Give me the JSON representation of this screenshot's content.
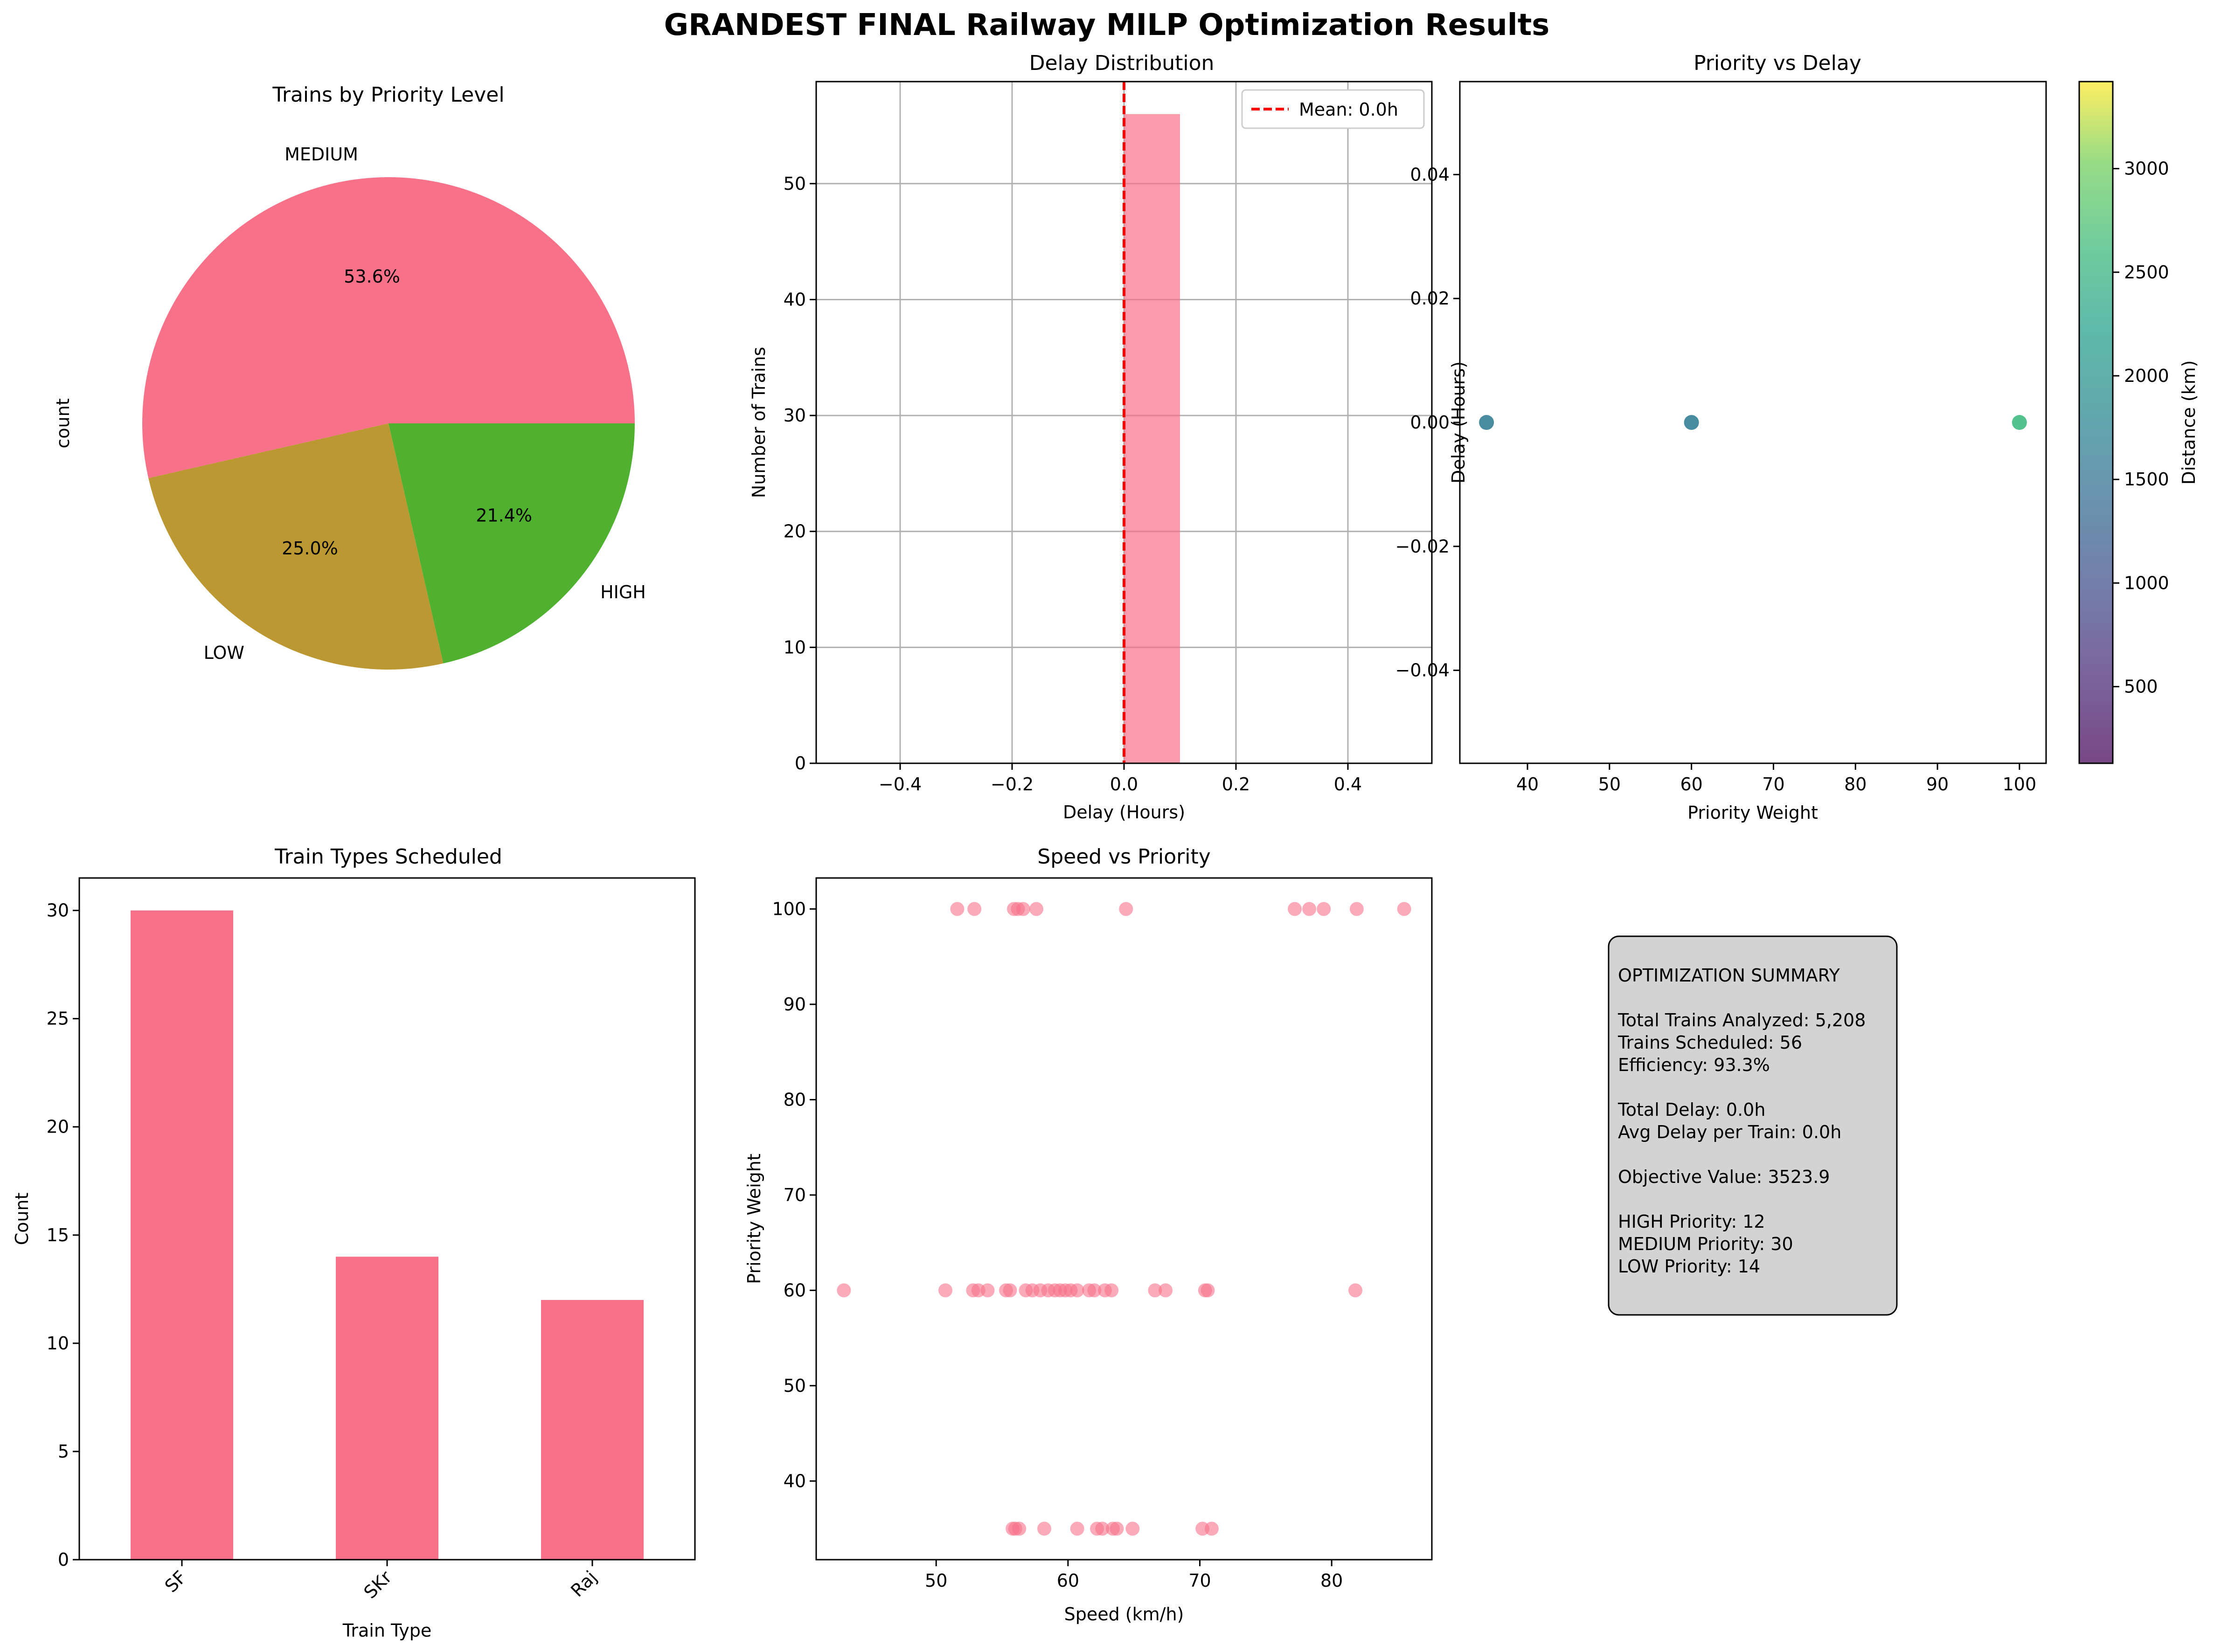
{
  "figure_title": "GRANDEST FINAL Railway MILP Optimization Results",
  "chart_data": [
    {
      "type": "pie",
      "title": "Trains by Priority Level",
      "ylabel": "count",
      "labels": [
        "MEDIUM",
        "LOW",
        "HIGH"
      ],
      "values": [
        30,
        14,
        12
      ],
      "pct_labels": [
        "53.6%",
        "25.0%",
        "21.4%"
      ],
      "colors": [
        "#f77189",
        "#bb9832",
        "#50b131"
      ]
    },
    {
      "type": "bar",
      "title": "Delay Distribution",
      "xlabel": "Delay (Hours)",
      "ylabel": "Number of Trains",
      "bins": [
        {
          "x0": 0.0,
          "x1": 0.1,
          "count": 56
        }
      ],
      "xlim": [
        -0.55,
        0.55
      ],
      "ylim": [
        0,
        58.8
      ],
      "xticks": [
        -0.4,
        -0.2,
        0.0,
        0.2,
        0.4
      ],
      "xtick_labels": [
        "−0.4",
        "−0.2",
        "0.0",
        "0.2",
        "0.4"
      ],
      "yticks": [
        0,
        10,
        20,
        30,
        40,
        50
      ],
      "yticks_labels": [
        "0",
        "10",
        "20",
        "30",
        "40",
        "50"
      ],
      "grid": true,
      "mean_line": 0.0,
      "legend": {
        "label": "Mean: 0.0h",
        "placement": "top-right"
      },
      "bar_color": "#f77189",
      "mean_color": "#ff0000"
    },
    {
      "type": "scatter",
      "title": "Priority vs Delay",
      "xlabel": "Priority Weight",
      "ylabel": "Delay (Hours)",
      "points": [
        {
          "x": 35,
          "y": 0.0,
          "color": "#2a788e"
        },
        {
          "x": 60,
          "y": 0.0,
          "color": "#2a788e"
        },
        {
          "x": 100,
          "y": 0.0,
          "color": "#35b779"
        }
      ],
      "xlim": [
        31.75,
        103.25
      ],
      "ylim": [
        -0.055,
        0.055
      ],
      "xticks": [
        40,
        50,
        60,
        70,
        80,
        90,
        100
      ],
      "xtick_labels": [
        "40",
        "50",
        "60",
        "70",
        "80",
        "90",
        "100"
      ],
      "yticks": [
        -0.04,
        -0.02,
        0.0,
        0.02,
        0.04
      ],
      "ytick_labels": [
        "−0.04",
        "−0.02",
        "0.00",
        "0.02",
        "0.04"
      ],
      "colorbar": {
        "label": "Distance (km)",
        "range": [
          130,
          3420
        ],
        "ticks": [
          500,
          1000,
          1500,
          2000,
          2500,
          3000
        ],
        "tick_labels": [
          "500",
          "1000",
          "1500",
          "2000",
          "2500",
          "3000"
        ],
        "colormap": "viridis"
      }
    },
    {
      "type": "bar",
      "title": "Train Types Scheduled",
      "xlabel": "Train Type",
      "ylabel": "Count",
      "categories": [
        "SF",
        "SKr",
        "Raj"
      ],
      "values": [
        30,
        14,
        12
      ],
      "ylim": [
        0,
        31.5
      ],
      "yticks": [
        0,
        5,
        10,
        15,
        20,
        25,
        30
      ],
      "ytick_labels": [
        "0",
        "5",
        "10",
        "15",
        "20",
        "25",
        "30"
      ],
      "bar_color": "#f77189"
    },
    {
      "type": "scatter",
      "title": "Speed vs Priority",
      "xlabel": "Speed (km/h)",
      "ylabel": "Priority Weight",
      "color": "#f77189",
      "points": [
        {
          "x": 51.6,
          "y": 100
        },
        {
          "x": 52.9,
          "y": 100
        },
        {
          "x": 55.9,
          "y": 100
        },
        {
          "x": 56.2,
          "y": 100
        },
        {
          "x": 56.6,
          "y": 100
        },
        {
          "x": 57.6,
          "y": 100
        },
        {
          "x": 64.4,
          "y": 100
        },
        {
          "x": 77.2,
          "y": 100
        },
        {
          "x": 78.3,
          "y": 100
        },
        {
          "x": 79.4,
          "y": 100
        },
        {
          "x": 81.9,
          "y": 100
        },
        {
          "x": 85.5,
          "y": 100
        },
        {
          "x": 43.0,
          "y": 60
        },
        {
          "x": 50.7,
          "y": 60
        },
        {
          "x": 52.8,
          "y": 60
        },
        {
          "x": 53.2,
          "y": 60
        },
        {
          "x": 53.9,
          "y": 60
        },
        {
          "x": 55.3,
          "y": 60
        },
        {
          "x": 55.6,
          "y": 60
        },
        {
          "x": 56.8,
          "y": 60
        },
        {
          "x": 57.3,
          "y": 60
        },
        {
          "x": 57.9,
          "y": 60
        },
        {
          "x": 58.5,
          "y": 60
        },
        {
          "x": 59.0,
          "y": 60
        },
        {
          "x": 59.4,
          "y": 60
        },
        {
          "x": 59.8,
          "y": 60
        },
        {
          "x": 60.2,
          "y": 60
        },
        {
          "x": 60.7,
          "y": 60
        },
        {
          "x": 61.6,
          "y": 60
        },
        {
          "x": 62.0,
          "y": 60
        },
        {
          "x": 62.8,
          "y": 60
        },
        {
          "x": 63.3,
          "y": 60
        },
        {
          "x": 66.6,
          "y": 60
        },
        {
          "x": 67.4,
          "y": 60
        },
        {
          "x": 70.4,
          "y": 60
        },
        {
          "x": 70.6,
          "y": 60
        },
        {
          "x": 81.8,
          "y": 60
        },
        {
          "x": 55.8,
          "y": 35
        },
        {
          "x": 56.0,
          "y": 35
        },
        {
          "x": 56.3,
          "y": 35
        },
        {
          "x": 58.2,
          "y": 35
        },
        {
          "x": 60.7,
          "y": 35
        },
        {
          "x": 62.2,
          "y": 35
        },
        {
          "x": 62.6,
          "y": 35
        },
        {
          "x": 63.4,
          "y": 35
        },
        {
          "x": 63.7,
          "y": 35
        },
        {
          "x": 64.9,
          "y": 35
        },
        {
          "x": 70.2,
          "y": 35
        },
        {
          "x": 70.9,
          "y": 35
        }
      ],
      "xlim": [
        40.9,
        87.6
      ],
      "ylim": [
        31.75,
        103.25
      ],
      "xticks": [
        50,
        60,
        70,
        80
      ],
      "xtick_labels": [
        "50",
        "60",
        "70",
        "80"
      ],
      "yticks": [
        40,
        50,
        60,
        70,
        80,
        90,
        100
      ],
      "ytick_labels": [
        "40",
        "50",
        "60",
        "70",
        "80",
        "90",
        "100"
      ]
    }
  ],
  "summary": {
    "lines": [
      "OPTIMIZATION SUMMARY",
      "",
      "Total Trains Analyzed: 5,208",
      "Trains Scheduled: 56",
      "Efficiency: 93.3%",
      "",
      "Total Delay: 0.0h",
      "Avg Delay per Train: 0.0h",
      "",
      "Objective Value: 3523.9",
      "",
      "HIGH Priority: 12",
      "MEDIUM Priority: 30",
      "LOW Priority: 14"
    ],
    "box_color": "#d3d3d3"
  }
}
